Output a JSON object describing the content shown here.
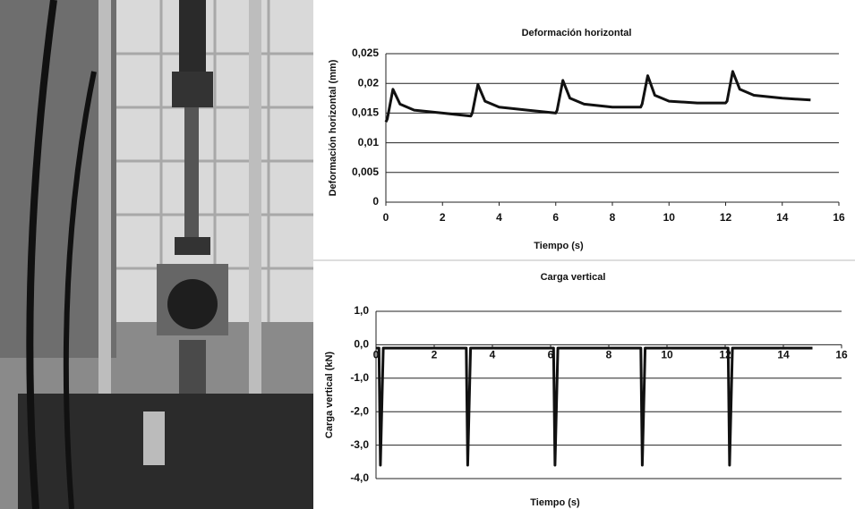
{
  "chart_data": [
    {
      "type": "line",
      "title": "Deformación horizontal",
      "x_label": "Tiempo (s)",
      "y_label": "Deformación horizontal (mm)",
      "x": [
        0,
        0.05,
        0.25,
        0.5,
        1,
        2,
        3,
        3.05,
        3.25,
        3.5,
        4,
        5,
        6,
        6.05,
        6.25,
        6.5,
        7,
        8,
        9,
        9.05,
        9.25,
        9.5,
        10,
        11,
        12,
        12.05,
        12.25,
        12.5,
        13,
        14,
        15
      ],
      "values": [
        0.0135,
        0.014,
        0.019,
        0.0165,
        0.0155,
        0.015,
        0.0145,
        0.015,
        0.0198,
        0.017,
        0.016,
        0.0155,
        0.015,
        0.0155,
        0.0205,
        0.0175,
        0.0165,
        0.016,
        0.016,
        0.0165,
        0.0213,
        0.018,
        0.017,
        0.0167,
        0.0167,
        0.017,
        0.022,
        0.019,
        0.018,
        0.0175,
        0.0172
      ],
      "color": "#111111",
      "grid": true,
      "xlim": [
        0,
        16
      ],
      "xticks": [
        0,
        2,
        4,
        6,
        8,
        10,
        12,
        14,
        16
      ],
      "ylim": [
        0,
        0.025
      ],
      "yticks": [
        0,
        {
          "value": 0.005,
          "label": "0,005"
        },
        {
          "value": 0.01,
          "label": "0,01"
        },
        {
          "value": 0.015,
          "label": "0,015"
        },
        {
          "value": 0.02,
          "label": "0,02"
        },
        {
          "value": 0.025,
          "label": "0,025"
        }
      ]
    },
    {
      "type": "line",
      "title": "Carga vertical",
      "x_label": "Tiempo (s)",
      "y_label": "Carga vertical (kN)",
      "x": [
        0,
        0.1,
        0.15,
        0.25,
        3.1,
        3.15,
        3.25,
        6.1,
        6.15,
        6.25,
        9.1,
        9.15,
        9.25,
        12.1,
        12.15,
        12.25,
        15
      ],
      "values": [
        -0.1,
        -0.1,
        -3.6,
        -0.1,
        -0.1,
        -3.6,
        -0.1,
        -0.1,
        -3.6,
        -0.1,
        -0.1,
        -3.6,
        -0.1,
        -0.1,
        -3.6,
        -0.1,
        -0.1
      ],
      "color": "#111111",
      "grid": true,
      "xlim": [
        0,
        16
      ],
      "xticks": [
        0,
        2,
        4,
        6,
        8,
        10,
        12,
        14,
        16
      ],
      "ylim": [
        -4,
        1
      ],
      "yticks": [
        {
          "value": -4,
          "label": "-4,0"
        },
        {
          "value": -3,
          "label": "-3,0"
        },
        {
          "value": -2,
          "label": "-2,0"
        },
        {
          "value": -1,
          "label": "-1,0"
        },
        {
          "value": 0,
          "label": "0,0"
        },
        {
          "value": 1,
          "label": "1,0"
        }
      ]
    }
  ]
}
